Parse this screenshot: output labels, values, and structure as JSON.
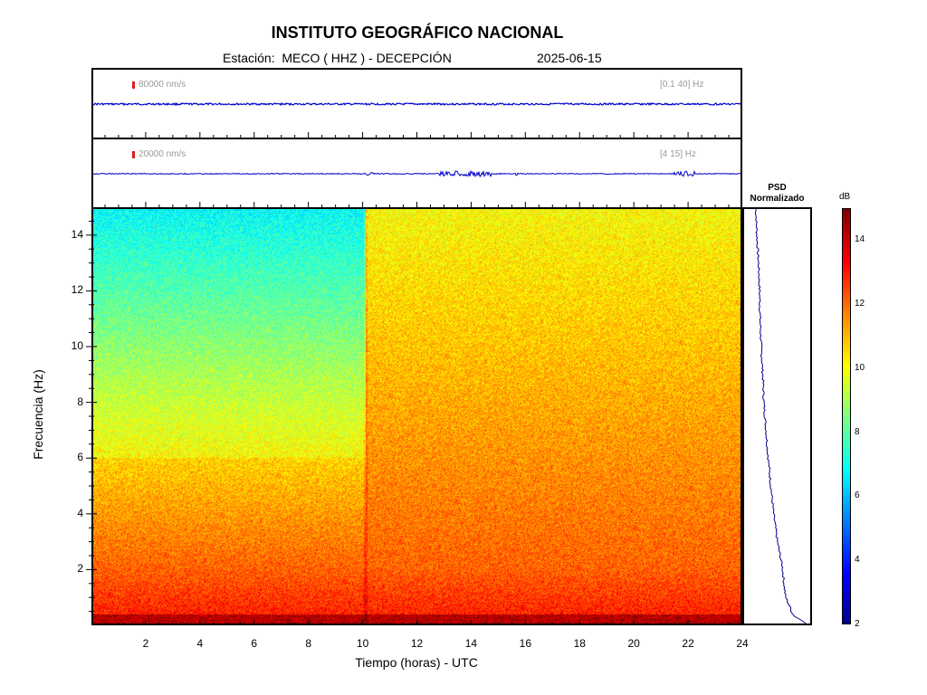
{
  "header": {
    "title": "INSTITUTO GEOGRÁFICO NACIONAL",
    "station": "Estación:  MECO ( HHZ ) - DECEPCIÓN",
    "date": "2025-06-15"
  },
  "waveforms": [
    {
      "scale": "80000 nm/s",
      "band": "[0.1 40] Hz",
      "color": "#0000cc"
    },
    {
      "scale": "20000 nm/s",
      "band": "[4 15] Hz",
      "color": "#0000cc"
    }
  ],
  "psd": {
    "title_line1": "PSD",
    "title_line2": "Normalizado"
  },
  "colorbar": {
    "unit": "dB",
    "ticks": [
      "2",
      "4",
      "6",
      "8",
      "10",
      "12",
      "14"
    ],
    "range": [
      2,
      15
    ]
  },
  "chart_data": {
    "type": "heatmap",
    "xlabel": "Tiempo (horas) - UTC",
    "ylabel": "Frecuencia  (Hz)",
    "xlim": [
      0,
      24
    ],
    "ylim": [
      0,
      15
    ],
    "xticks": [
      "2",
      "4",
      "6",
      "8",
      "10",
      "12",
      "14",
      "16",
      "18",
      "20",
      "22",
      "24"
    ],
    "yticks": [
      "2",
      "4",
      "6",
      "8",
      "10",
      "12",
      "14"
    ],
    "spectral_change_hour": 10.1,
    "psd_profile": {
      "freq_hz": [
        0,
        0.3,
        1,
        2,
        3,
        4,
        5,
        6,
        7,
        8,
        9,
        10,
        11,
        12,
        13,
        14,
        15
      ],
      "norm_power": [
        1.0,
        0.75,
        0.6,
        0.55,
        0.45,
        0.38,
        0.33,
        0.28,
        0.24,
        0.2,
        0.18,
        0.15,
        0.13,
        0.12,
        0.1,
        0.07,
        0.05
      ]
    }
  }
}
